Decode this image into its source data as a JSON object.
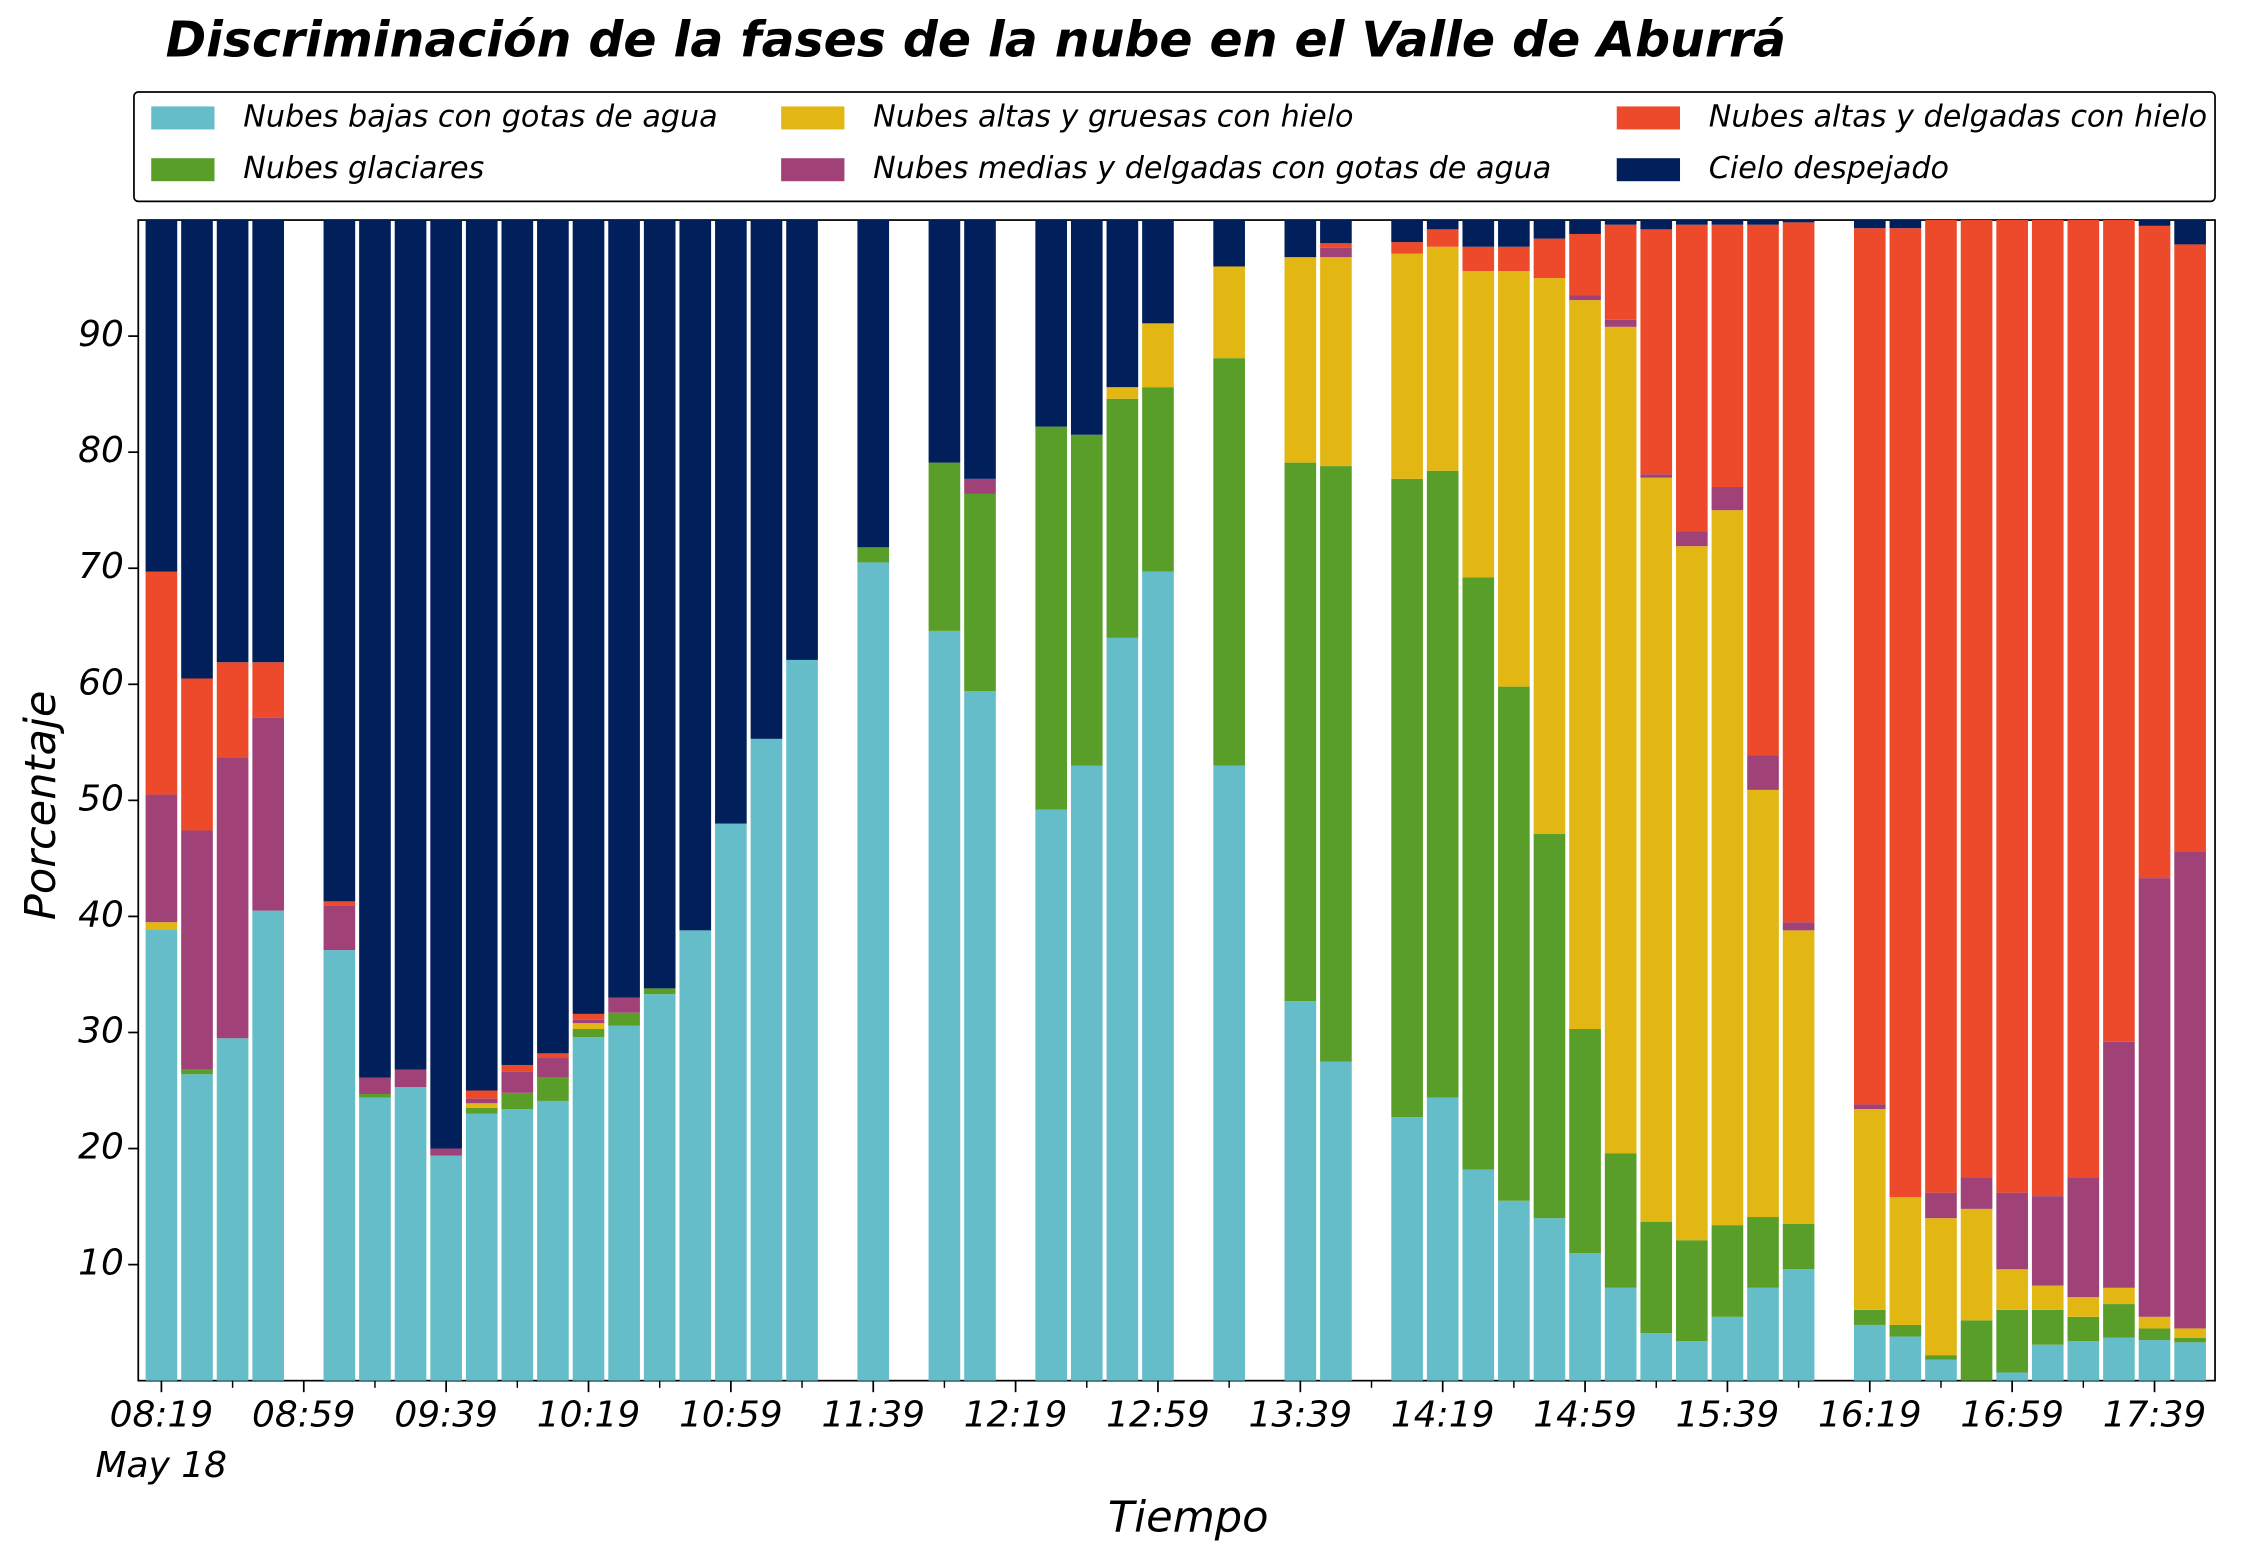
{
  "chart_data": {
    "type": "bar",
    "stacked": true,
    "title": "Discriminación de la fases de la nube en el Valle de Aburrá",
    "x_label": "Tiempo",
    "y_label": "Porcentaje",
    "date_label": "May 18",
    "categories": [
      "08:19",
      null,
      null,
      null,
      "08:59",
      null,
      null,
      null,
      "09:39",
      null,
      null,
      null,
      "10:19",
      null,
      null,
      null,
      "10:59",
      null,
      null,
      null,
      "11:39",
      null,
      null,
      null,
      "12:19",
      null,
      null,
      null,
      "12:59",
      null,
      null,
      null,
      "13:39",
      null,
      null,
      null,
      "14:19",
      null,
      null,
      null,
      "14:59",
      null,
      null,
      null,
      "15:39",
      null,
      null,
      null,
      "16:19",
      null,
      null,
      null,
      "16:59",
      null,
      null,
      null,
      "17:39",
      null
    ],
    "series": [
      {
        "name": "Nubes bajas con gotas de agua",
        "color": "#65bdc9",
        "values": [
          38.9,
          26.4,
          29.5,
          40.5,
          null,
          37.1,
          24.4,
          25.3,
          19.4,
          23,
          23.4,
          24.1,
          29.6,
          30.6,
          33.3,
          38.8,
          48,
          55.3,
          62.1,
          null,
          70.5,
          null,
          64.6,
          59.4,
          null,
          49.2,
          53,
          64,
          69.7,
          null,
          53,
          null,
          32.7,
          27.5,
          null,
          22.7,
          24.4,
          18.2,
          15.5,
          14,
          11,
          8,
          4.1,
          3.4,
          5.5,
          8,
          9.6,
          null,
          4.8,
          3.8,
          1.8,
          0,
          0.7,
          3.1,
          3.4,
          3.7,
          3.5,
          3.3
        ]
      },
      {
        "name": "Nubes glaciares",
        "color": "#5a9e2a",
        "values": [
          0,
          0.4,
          0,
          0,
          null,
          0,
          0.3,
          0,
          0,
          0.5,
          1.4,
          2,
          0.7,
          1.1,
          0.5,
          0,
          0,
          0,
          0,
          null,
          1.3,
          null,
          14.5,
          17,
          null,
          33,
          28.5,
          20.6,
          15.9,
          null,
          35.1,
          null,
          46.4,
          51.3,
          null,
          55,
          54,
          51,
          44.3,
          33.1,
          19.3,
          11.6,
          9.6,
          8.7,
          7.9,
          6.1,
          3.9,
          null,
          1.3,
          1,
          0.4,
          5.2,
          5.4,
          3,
          2.1,
          2.9,
          1,
          0.4
        ]
      },
      {
        "name": "Nubes altas y gruesas con hielo",
        "color": "#e2b714",
        "values": [
          0.6,
          0,
          0,
          0,
          null,
          0,
          0,
          0,
          0,
          0.4,
          0,
          0,
          0.5,
          0,
          0,
          0,
          0,
          0,
          0,
          null,
          0,
          null,
          0,
          0,
          null,
          0,
          0,
          1,
          5.5,
          null,
          7.9,
          null,
          17.7,
          18,
          null,
          19.4,
          19.3,
          26.4,
          35.8,
          47.9,
          62.8,
          71.2,
          64.1,
          59.8,
          61.6,
          36.8,
          25.3,
          null,
          17.3,
          11,
          11.8,
          9.6,
          3.5,
          2.1,
          1.7,
          1.4,
          1,
          0.8
        ]
      },
      {
        "name": "Nubes medias y delgadas con gotas de agua",
        "color": "#a04277",
        "values": [
          11,
          20.6,
          24.2,
          16.6,
          null,
          3.8,
          1.4,
          1.5,
          0.6,
          0.4,
          1.8,
          1.7,
          0.3,
          1.3,
          0,
          0,
          0,
          0,
          0,
          null,
          0,
          null,
          0,
          1.3,
          null,
          0,
          0,
          0,
          0,
          null,
          0,
          null,
          0,
          0.8,
          null,
          0,
          0,
          0,
          0,
          0,
          0.4,
          0.6,
          0.3,
          1.3,
          2,
          3,
          0.7,
          null,
          0.4,
          0,
          2.2,
          2.7,
          6.6,
          7.7,
          10.3,
          21.2,
          37.8,
          41.1
        ]
      },
      {
        "name": "Nubes altas y delgadas con hielo",
        "color": "#ec4a2a",
        "values": [
          19.2,
          13.1,
          8.2,
          4.8,
          null,
          0.4,
          0,
          0,
          0,
          0.7,
          0.6,
          0.4,
          0.5,
          0,
          0,
          0,
          0,
          0,
          0,
          null,
          0,
          null,
          0,
          0,
          null,
          0,
          0,
          0,
          0,
          null,
          0,
          null,
          0,
          0.4,
          null,
          1,
          1.5,
          2.1,
          2.1,
          3.4,
          5.3,
          8.2,
          21.1,
          26.4,
          22.6,
          45.7,
          60.3,
          null,
          75.5,
          83.5,
          83.8,
          82.5,
          83.8,
          84.1,
          82.5,
          70.8,
          56.2,
          52.3
        ]
      },
      {
        "name": "Cielo despejado",
        "color": "#001f5b",
        "values": [
          30.3,
          39.5,
          38.1,
          38.1,
          null,
          58.7,
          73.9,
          73.2,
          80,
          75,
          72.8,
          71.8,
          68.4,
          67,
          66.2,
          61.2,
          52,
          44.7,
          37.9,
          null,
          28.2,
          null,
          20.9,
          22.3,
          null,
          17.8,
          18.5,
          14.4,
          8.9,
          null,
          4,
          null,
          3.2,
          2,
          null,
          1.9,
          0.8,
          2.3,
          2.3,
          1.6,
          1.2,
          0.4,
          0.8,
          0.4,
          0.4,
          0.4,
          0.2,
          null,
          0.7,
          0.7,
          0,
          0,
          0,
          0,
          0,
          0,
          0.5,
          2.1
        ]
      }
    ],
    "ylim": [
      0,
      100
    ],
    "yticks": [
      10,
      20,
      30,
      40,
      50,
      60,
      70,
      80,
      90
    ],
    "legend": "top"
  }
}
